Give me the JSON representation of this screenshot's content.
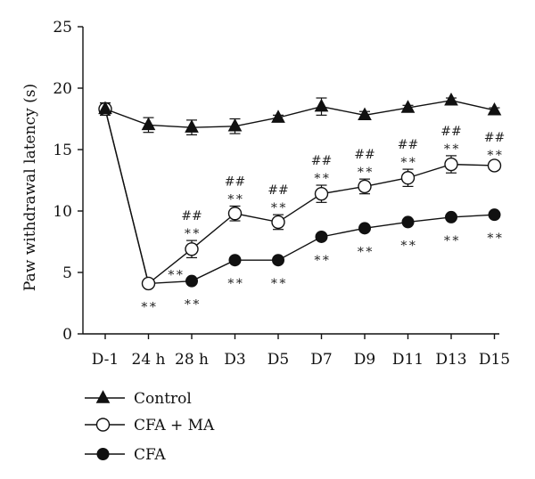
{
  "chart_data": {
    "type": "line",
    "title": "",
    "xlabel": "",
    "ylabel": "Paw withdrawal latency (s)",
    "ylim": [
      0,
      25
    ],
    "yticks": [
      0,
      5,
      10,
      15,
      20,
      25
    ],
    "categories": [
      "D-1",
      "24 h",
      "28 h",
      "D3",
      "D5",
      "D7",
      "D9",
      "D11",
      "D13",
      "D15"
    ],
    "grid": false,
    "legend_position": "bottom-left",
    "series": [
      {
        "name": "Control",
        "marker": "filled-triangle",
        "values": [
          18.3,
          17.0,
          16.8,
          16.9,
          17.6,
          18.5,
          17.8,
          18.4,
          19.0,
          18.2
        ],
        "errors": [
          0.5,
          0.6,
          0.6,
          0.6,
          0.2,
          0.7,
          0.3,
          0.2,
          0.2,
          0.2
        ]
      },
      {
        "name": "CFA + MA",
        "marker": "open-circle",
        "values": [
          18.3,
          4.1,
          6.9,
          9.8,
          9.1,
          11.4,
          12.0,
          12.7,
          13.8,
          13.7
        ],
        "errors": [
          0.5,
          0.2,
          0.7,
          0.6,
          0.6,
          0.7,
          0.6,
          0.7,
          0.7,
          0.3
        ],
        "annotations_above": [
          "",
          "",
          "##",
          "##",
          "##",
          "##",
          "##",
          "##",
          "##",
          "##"
        ],
        "annotations_stars": [
          "",
          "∗∗",
          "∗∗",
          "∗∗",
          "∗∗",
          "∗∗",
          "∗∗",
          "∗∗",
          "∗∗",
          "∗∗"
        ]
      },
      {
        "name": "CFA",
        "marker": "filled-circle",
        "values": [
          18.3,
          4.1,
          4.3,
          6.0,
          6.0,
          7.9,
          8.6,
          9.1,
          9.5,
          9.7
        ],
        "errors": [
          0.5,
          0.2,
          0.2,
          0.2,
          0.2,
          0.2,
          0.2,
          0.2,
          0.2,
          0.2
        ],
        "annotations_below": [
          "",
          "∗∗",
          "∗∗",
          "∗∗",
          "∗∗",
          "∗∗",
          "∗∗",
          "∗∗",
          "∗∗",
          "∗∗"
        ]
      }
    ]
  }
}
